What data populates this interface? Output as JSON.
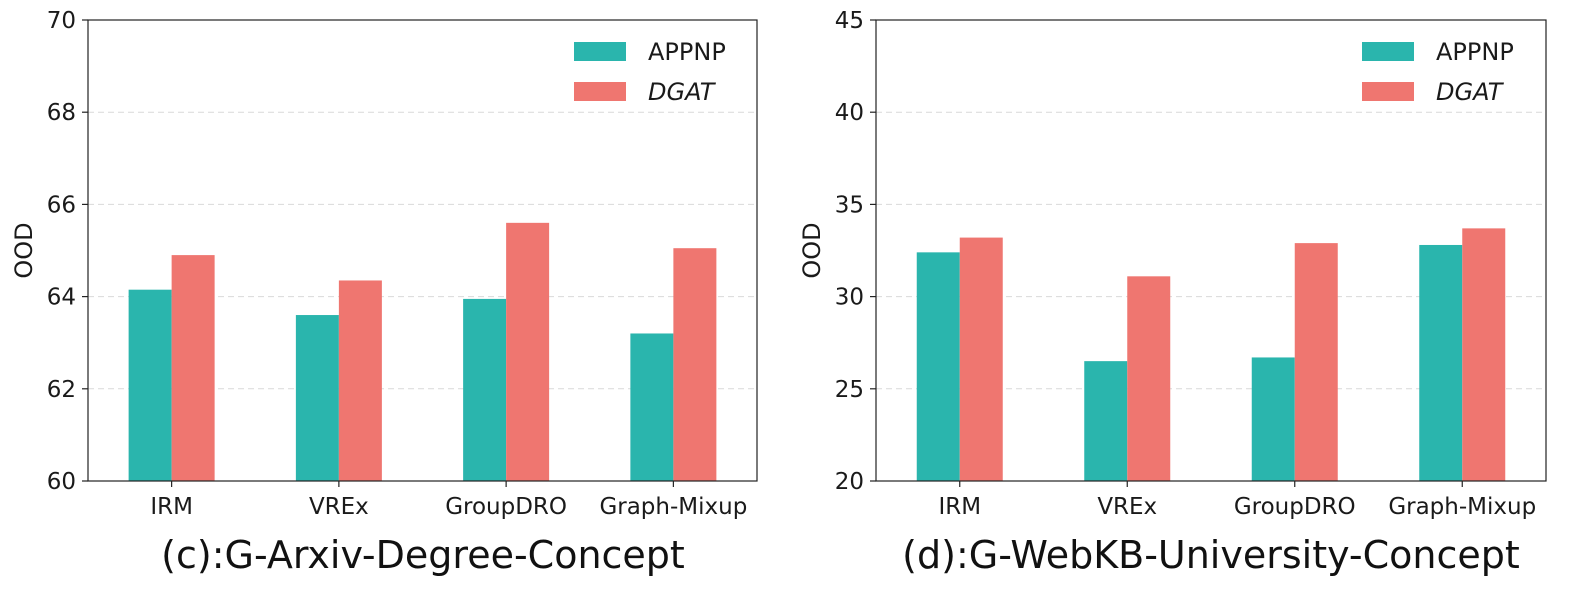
{
  "chart_data": [
    {
      "type": "bar",
      "caption": "(c):G-Arxiv-Degree-Concept",
      "ylabel": "OOD",
      "xlabel": "",
      "ylim": [
        60,
        70
      ],
      "yticks": [
        60,
        62,
        64,
        66,
        68,
        70
      ],
      "categories": [
        "IRM",
        "VREx",
        "GroupDRO",
        "Graph-Mixup"
      ],
      "series": [
        {
          "name": "APPNP",
          "italic": false,
          "color": "#2ab5ad",
          "values": [
            64.15,
            63.6,
            63.95,
            63.2
          ]
        },
        {
          "name": "DGAT",
          "italic": true,
          "color": "#ef7670",
          "values": [
            64.9,
            64.35,
            65.6,
            65.05
          ]
        }
      ],
      "grid": true,
      "legend": "top-right"
    },
    {
      "type": "bar",
      "caption": "(d):G-WebKB-University-Concept",
      "ylabel": "OOD",
      "xlabel": "",
      "ylim": [
        20,
        45
      ],
      "yticks": [
        20,
        25,
        30,
        35,
        40,
        45
      ],
      "categories": [
        "IRM",
        "VREx",
        "GroupDRO",
        "Graph-Mixup"
      ],
      "series": [
        {
          "name": "APPNP",
          "italic": false,
          "color": "#2ab5ad",
          "values": [
            32.4,
            26.5,
            26.7,
            32.8
          ]
        },
        {
          "name": "DGAT",
          "italic": true,
          "color": "#ef7670",
          "values": [
            33.2,
            31.1,
            32.9,
            33.7
          ]
        }
      ],
      "grid": true,
      "legend": "top-right"
    }
  ]
}
